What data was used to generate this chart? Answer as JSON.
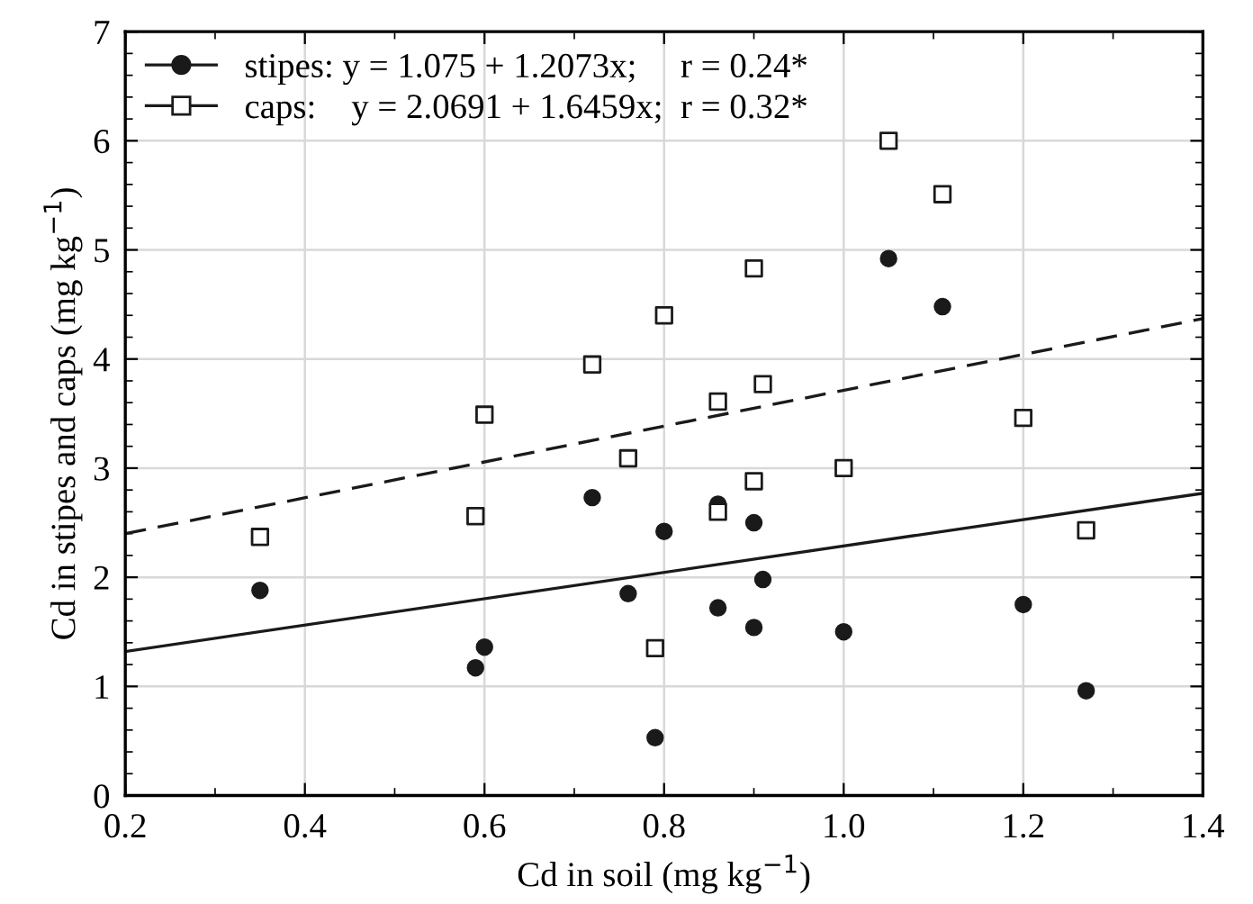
{
  "chart_data": {
    "type": "scatter",
    "xlabel": "Cd in soil (mg kg$^{−1}$)",
    "ylabel": "Cd in stipes and caps (mg kg$^{−1}$)",
    "xlim": [
      0.2,
      1.4
    ],
    "xticks": [
      {
        "value": 0.2,
        "label": "0.2"
      },
      {
        "value": 0.4,
        "label": "0.4"
      },
      {
        "value": 0.6,
        "label": "0.6"
      },
      {
        "value": 0.8,
        "label": "0.8"
      },
      {
        "value": 1.0,
        "label": "1.0"
      },
      {
        "value": 1.2,
        "label": "1.2"
      },
      {
        "value": 1.4,
        "label": "1.4"
      }
    ],
    "ylim": [
      0,
      7
    ],
    "yticks": [
      0,
      1,
      2,
      3,
      4,
      5,
      6,
      7
    ],
    "grid": true,
    "legend": "top left",
    "series": [
      {
        "name": "stipes: y = 1.075 + 1.2073x;     r = 0.24*",
        "marker": "circle",
        "color": "#1a1a1a",
        "x": [
          0.35,
          0.59,
          0.6,
          0.72,
          0.76,
          0.8,
          0.79,
          0.86,
          0.86,
          0.9,
          0.9,
          0.91,
          1.0,
          1.05,
          1.11,
          1.2,
          1.27
        ],
        "values": [
          1.88,
          1.17,
          1.36,
          2.73,
          1.85,
          2.42,
          0.53,
          2.67,
          1.72,
          2.5,
          1.54,
          1.98,
          1.5,
          4.92,
          4.48,
          1.75,
          0.96
        ]
      },
      {
        "name": "caps:    y = 2.0691 + 1.6459x;  r = 0.32*",
        "marker": "square",
        "color": "#1a1a1a",
        "x": [
          0.35,
          0.59,
          0.6,
          0.72,
          0.76,
          0.8,
          0.79,
          0.86,
          0.86,
          0.9,
          0.9,
          0.91,
          1.0,
          1.05,
          1.11,
          1.2,
          1.27
        ],
        "values": [
          2.37,
          2.56,
          3.49,
          3.95,
          3.09,
          4.4,
          1.35,
          3.61,
          2.6,
          4.83,
          2.88,
          3.77,
          3.0,
          6.0,
          5.51,
          3.46,
          2.43
        ]
      },
      {
        "type": "line",
        "line_style": "solid",
        "color": "#1a1a1a",
        "x": [
          0.2,
          1.4
        ],
        "values": [
          1.32,
          2.77
        ]
      },
      {
        "type": "line",
        "line_style": "dashed",
        "color": "#1a1a1a",
        "x": [
          0.2,
          1.4
        ],
        "values": [
          2.4,
          4.37
        ]
      }
    ]
  }
}
